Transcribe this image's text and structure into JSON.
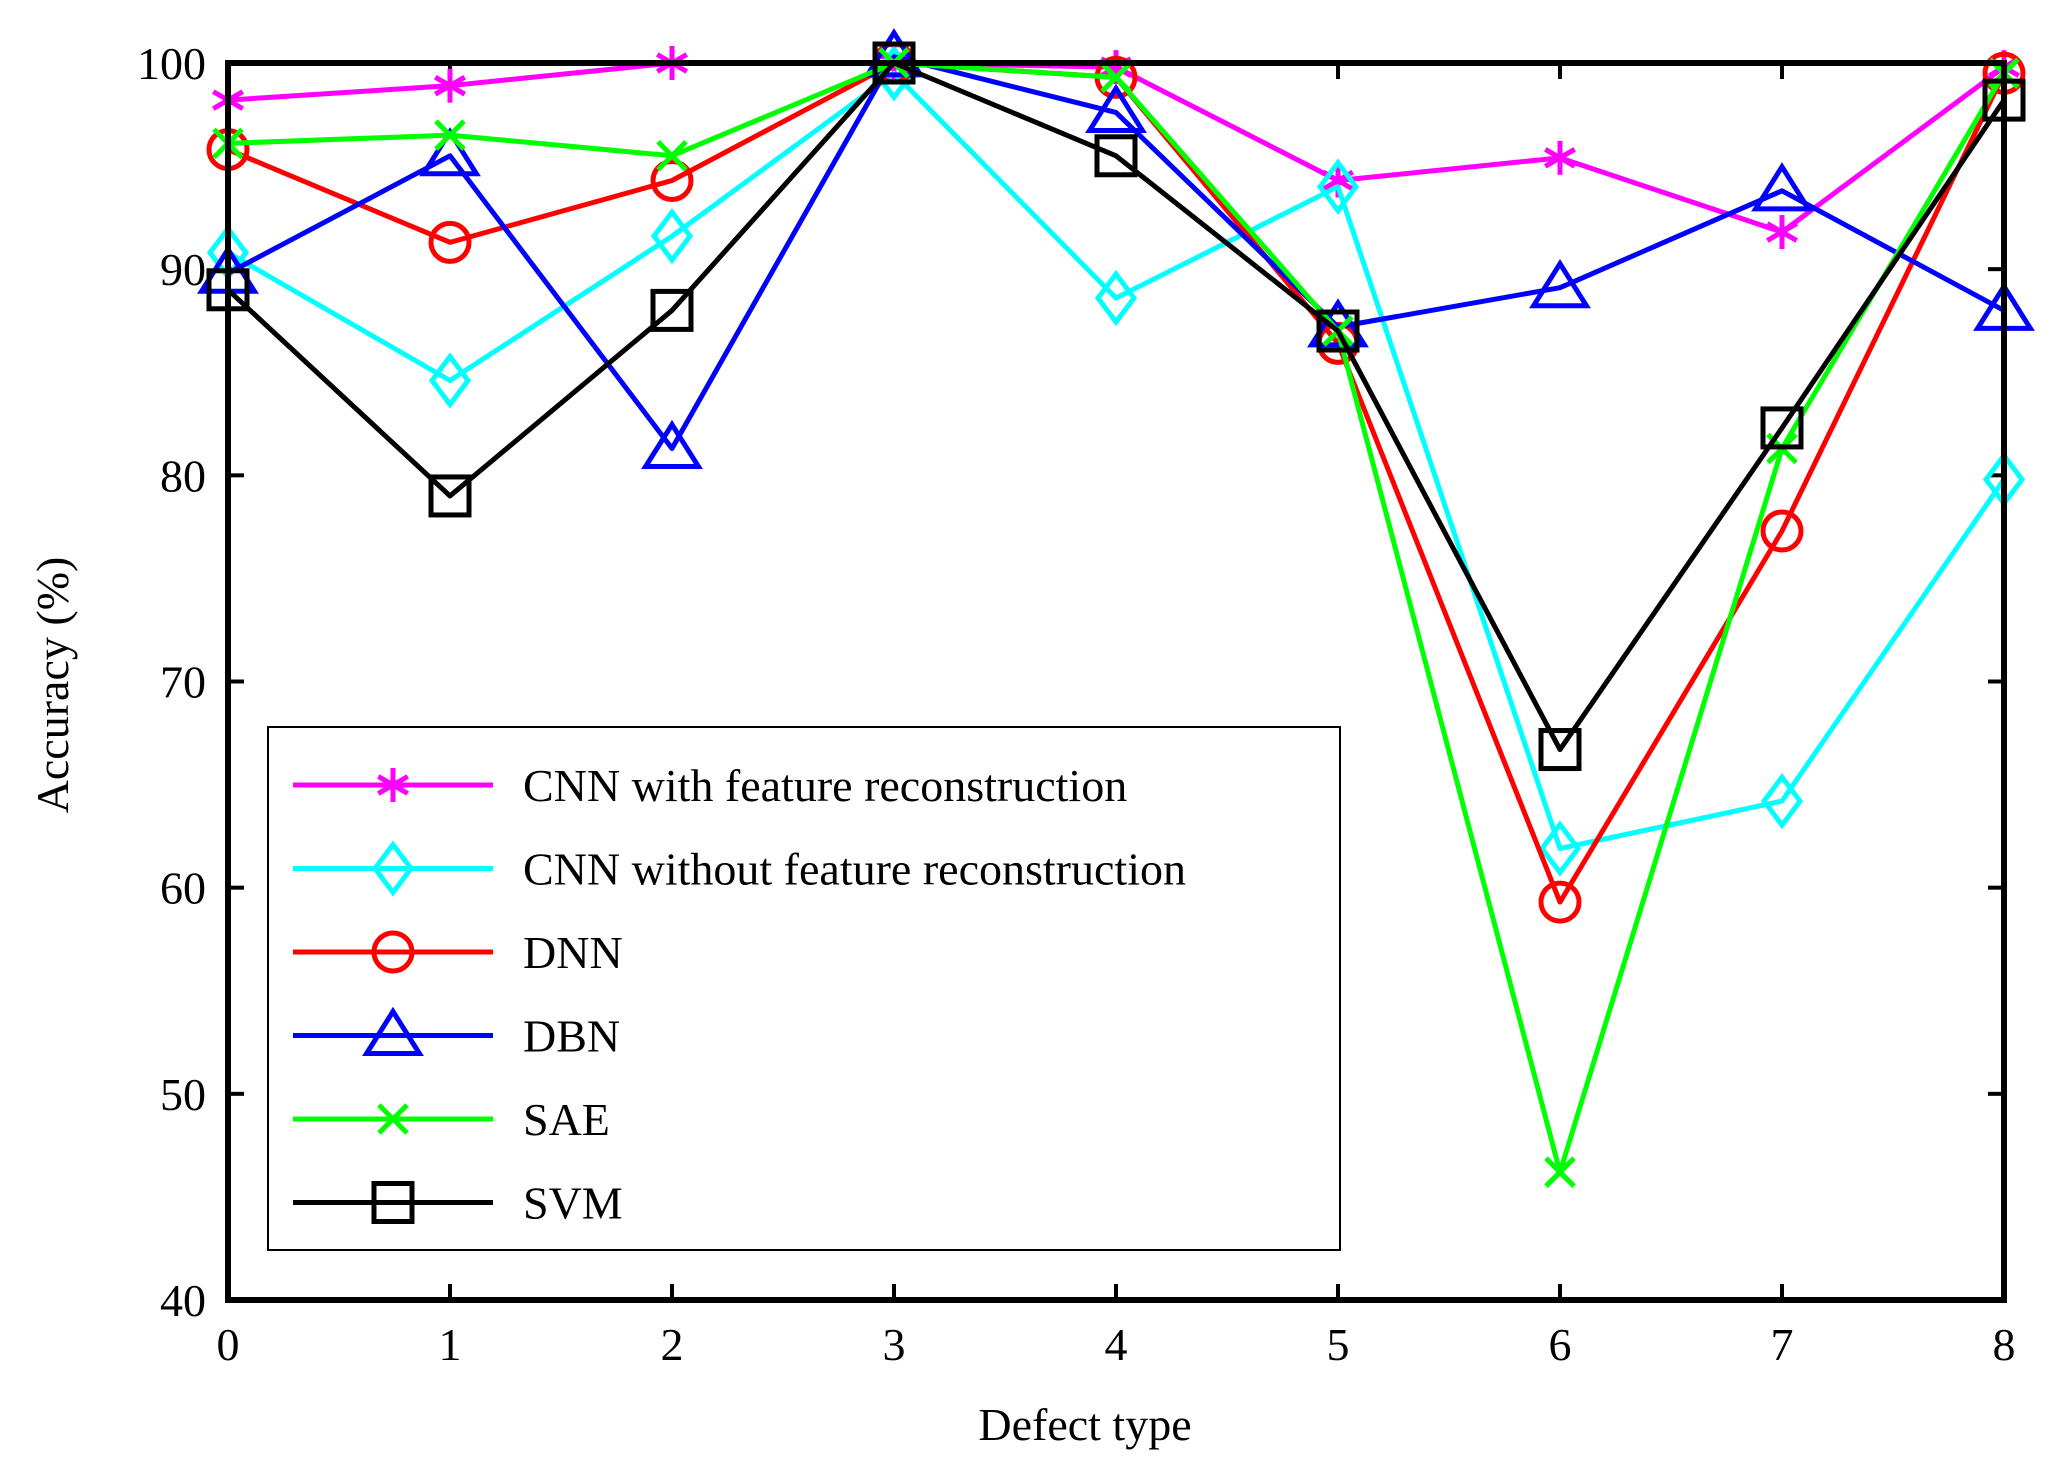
{
  "chart_data": {
    "type": "line",
    "xlabel": "Defect type",
    "ylabel": "Accuracy (%)",
    "x": [
      0,
      1,
      2,
      3,
      4,
      5,
      6,
      7,
      8
    ],
    "xlim": [
      0,
      8
    ],
    "ylim": [
      40,
      100
    ],
    "xticks": [
      "0",
      "1",
      "2",
      "3",
      "4",
      "5",
      "6",
      "7",
      "8"
    ],
    "yticks": [
      "40",
      "50",
      "60",
      "70",
      "80",
      "90",
      "100"
    ],
    "legend_position": "bottom-left",
    "series": [
      {
        "name": "CNN with feature reconstruction",
        "color": "#ff00ff",
        "marker": "asterisk",
        "values": [
          98.2,
          98.9,
          100,
          100,
          99.8,
          94.3,
          95.4,
          91.8,
          99.8
        ]
      },
      {
        "name": "CNN without feature reconstruction",
        "color": "#00ffff",
        "marker": "diamond",
        "values": [
          90.8,
          84.6,
          91.6,
          99.5,
          88.6,
          94.0,
          61.9,
          64.2,
          79.8
        ]
      },
      {
        "name": "DNN",
        "color": "#ff0000",
        "marker": "circle",
        "values": [
          95.8,
          91.3,
          94.3,
          100,
          99.3,
          86.4,
          59.3,
          77.3,
          99.5
        ]
      },
      {
        "name": "DBN",
        "color": "#0000ff",
        "marker": "triangle",
        "values": [
          89.8,
          95.5,
          81.3,
          100.3,
          97.6,
          87.2,
          89.1,
          93.8,
          88.0
        ]
      },
      {
        "name": "SAE",
        "color": "#00ff00",
        "marker": "x",
        "values": [
          96.1,
          96.5,
          95.5,
          100,
          99.3,
          87.0,
          46.2,
          81.3,
          99.5
        ]
      },
      {
        "name": "SVM",
        "color": "#000000",
        "marker": "square",
        "values": [
          89.0,
          79.0,
          88.0,
          100,
          95.5,
          87.0,
          66.7,
          82.3,
          98.2
        ]
      }
    ]
  }
}
